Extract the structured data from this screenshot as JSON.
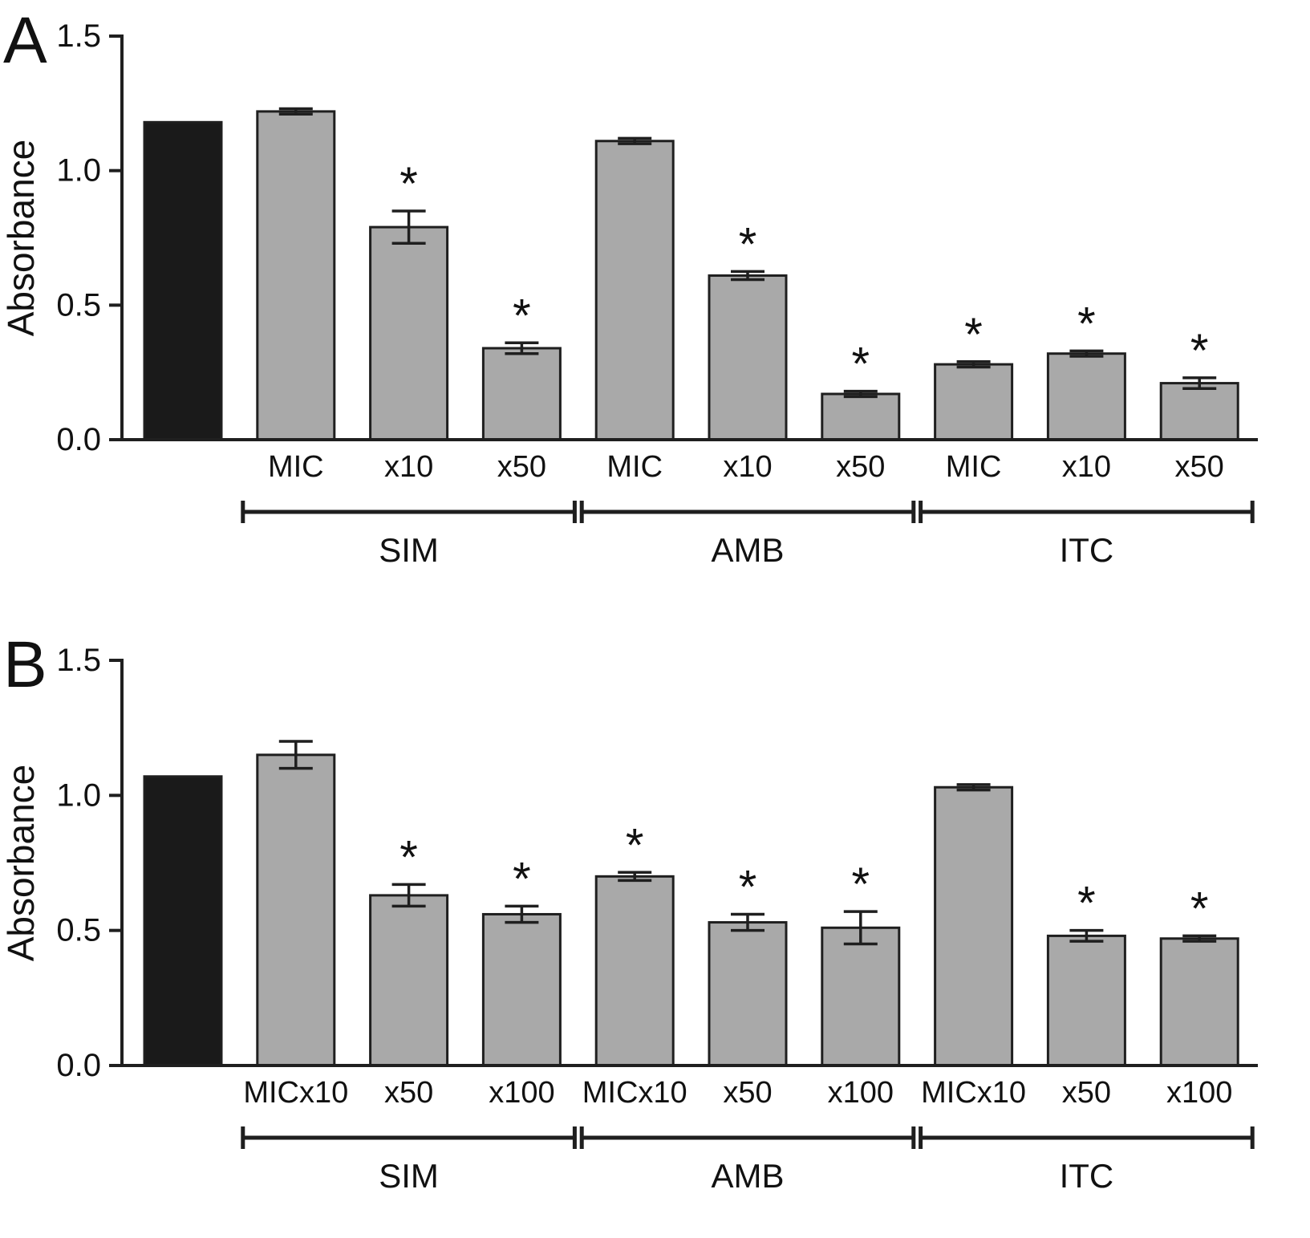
{
  "page": {
    "background": "#ffffff"
  },
  "style": {
    "bar_fill": "#a9a9a9",
    "control_fill": "#1a1a1a",
    "stroke": "#1f1f1f",
    "axis": "#1f1f1f",
    "text": "#111111"
  },
  "chart_data": [
    {
      "type": "bar",
      "panel_label": "A",
      "ylabel": "Absorbance",
      "ylim": [
        0,
        1.5
      ],
      "yticks": [
        "0.0",
        "0.5",
        "1.0",
        "1.5"
      ],
      "bars": [
        {
          "label": "",
          "value": 1.18,
          "error": 0.0,
          "significant": false,
          "control": true
        },
        {
          "label": "MIC",
          "value": 1.22,
          "error": 0.01,
          "significant": false,
          "control": false
        },
        {
          "label": "x10",
          "value": 0.79,
          "error": 0.06,
          "significant": true,
          "control": false
        },
        {
          "label": "x50",
          "value": 0.34,
          "error": 0.02,
          "significant": true,
          "control": false
        },
        {
          "label": "MIC",
          "value": 1.11,
          "error": 0.01,
          "significant": false,
          "control": false
        },
        {
          "label": "x10",
          "value": 0.61,
          "error": 0.015,
          "significant": true,
          "control": false
        },
        {
          "label": "x50",
          "value": 0.17,
          "error": 0.01,
          "significant": true,
          "control": false
        },
        {
          "label": "MIC",
          "value": 0.28,
          "error": 0.01,
          "significant": true,
          "control": false
        },
        {
          "label": "x10",
          "value": 0.32,
          "error": 0.01,
          "significant": true,
          "control": false
        },
        {
          "label": "x50",
          "value": 0.21,
          "error": 0.02,
          "significant": true,
          "control": false
        }
      ],
      "groups": [
        {
          "name": "SIM",
          "start": 1,
          "end": 3
        },
        {
          "name": "AMB",
          "start": 4,
          "end": 6
        },
        {
          "name": "ITC",
          "start": 7,
          "end": 9
        }
      ]
    },
    {
      "type": "bar",
      "panel_label": "B",
      "ylabel": "Absorbance",
      "ylim": [
        0,
        1.5
      ],
      "yticks": [
        "0.0",
        "0.5",
        "1.0",
        "1.5"
      ],
      "bars": [
        {
          "label": "",
          "value": 1.07,
          "error": 0.0,
          "significant": false,
          "control": true
        },
        {
          "label": "MICx10",
          "value": 1.15,
          "error": 0.05,
          "significant": false,
          "control": false
        },
        {
          "label": "x50",
          "value": 0.63,
          "error": 0.04,
          "significant": true,
          "control": false
        },
        {
          "label": "x100",
          "value": 0.56,
          "error": 0.03,
          "significant": true,
          "control": false
        },
        {
          "label": "MICx10",
          "value": 0.7,
          "error": 0.015,
          "significant": true,
          "control": false
        },
        {
          "label": "x50",
          "value": 0.53,
          "error": 0.03,
          "significant": true,
          "control": false
        },
        {
          "label": "x100",
          "value": 0.51,
          "error": 0.06,
          "significant": true,
          "control": false
        },
        {
          "label": "MICx10",
          "value": 1.03,
          "error": 0.01,
          "significant": false,
          "control": false
        },
        {
          "label": "x50",
          "value": 0.48,
          "error": 0.02,
          "significant": true,
          "control": false
        },
        {
          "label": "x100",
          "value": 0.47,
          "error": 0.01,
          "significant": true,
          "control": false
        }
      ],
      "groups": [
        {
          "name": "SIM",
          "start": 1,
          "end": 3
        },
        {
          "name": "AMB",
          "start": 4,
          "end": 6
        },
        {
          "name": "ITC",
          "start": 7,
          "end": 9
        }
      ]
    }
  ]
}
